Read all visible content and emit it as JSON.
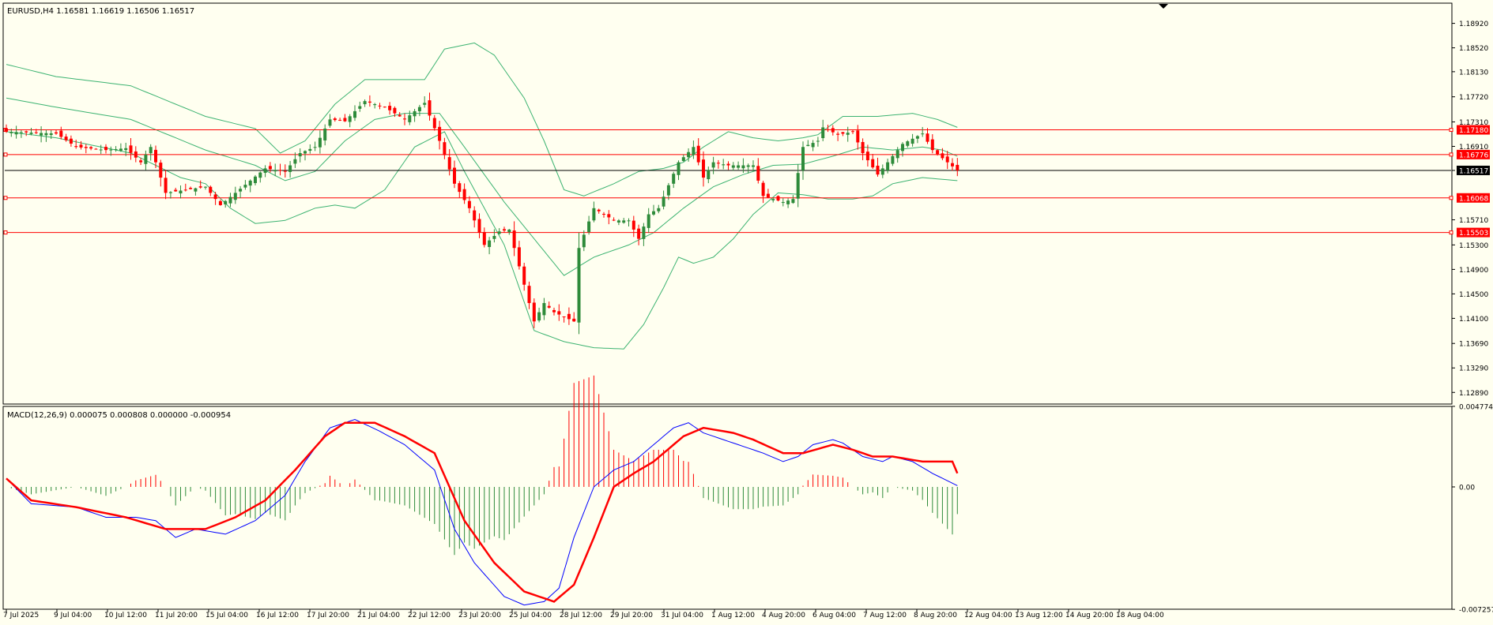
{
  "header": {
    "symbol_info": "EURUSD,H4  1.16581 1.16619 1.16506 1.16517"
  },
  "macd_header": "MACD(12,26,9) 0.000075 0.000808 0.000000 -0.000954",
  "colors": {
    "background": "#fffff0",
    "bull": "#2e8b3a",
    "bear": "#ff0000",
    "bollinger": "#3cb371",
    "hline": "#ff0000",
    "price_line": "#000000",
    "macd_line": "#0000ff",
    "signal_line": "#ff0000"
  },
  "chart_data": [
    {
      "type": "candlestick",
      "title": "EURUSD,H4  1.16581 1.16619 1.16506 1.16517",
      "ylim": [
        1.127,
        1.1925
      ],
      "y_ticks": [
        "1.18920",
        "1.18520",
        "1.18130",
        "1.17720",
        "1.17310",
        "1.16910",
        "1.16517",
        "1.15710",
        "1.15300",
        "1.14900",
        "1.14500",
        "1.14100",
        "1.13690",
        "1.13290",
        "1.12890"
      ],
      "x_ticks": [
        "7 Jul 2025",
        "9 Jul 04:00",
        "10 Jul 12:00",
        "11 Jul 20:00",
        "15 Jul 04:00",
        "16 Jul 12:00",
        "17 Jul 20:00",
        "21 Jul 04:00",
        "22 Jul 12:00",
        "23 Jul 20:00",
        "25 Jul 04:00",
        "28 Jul 12:00",
        "29 Jul 20:00",
        "31 Jul 04:00",
        "1 Aug 12:00",
        "4 Aug 20:00",
        "6 Aug 04:00",
        "7 Aug 12:00",
        "8 Aug 20:00",
        "12 Aug 04:00",
        "13 Aug 12:00",
        "14 Aug 20:00",
        "18 Aug 04:00"
      ],
      "indicators": [
        "Bollinger Bands"
      ],
      "horizontal_levels": [
        "1.17180",
        "1.16776",
        "1.16068",
        "1.15503"
      ],
      "current_price": "1.16517",
      "close_anchors": [
        [
          0,
          1.1715
        ],
        [
          10,
          1.1712
        ],
        [
          14,
          1.169
        ],
        [
          20,
          1.1685
        ],
        [
          24,
          1.1688
        ],
        [
          27,
          1.1665
        ],
        [
          29,
          1.169
        ],
        [
          32,
          1.1615
        ],
        [
          40,
          1.1625
        ],
        [
          43,
          1.1595
        ],
        [
          46,
          1.1615
        ],
        [
          52,
          1.1655
        ],
        [
          56,
          1.165
        ],
        [
          59,
          1.168
        ],
        [
          62,
          1.169
        ],
        [
          65,
          1.1735
        ],
        [
          68,
          1.1732
        ],
        [
          72,
          1.1765
        ],
        [
          76,
          1.1755
        ],
        [
          80,
          1.1735
        ],
        [
          84,
          1.1762
        ],
        [
          87,
          1.17
        ],
        [
          90,
          1.163
        ],
        [
          93,
          1.159
        ],
        [
          96,
          1.153
        ],
        [
          99,
          1.1552
        ],
        [
          101,
          1.1555
        ],
        [
          104,
          1.1465
        ],
        [
          106,
          1.1405
        ],
        [
          108,
          1.1435
        ],
        [
          110,
          1.142
        ],
        [
          114,
          1.1405
        ],
        [
          115,
          1.1525
        ],
        [
          118,
          1.159
        ],
        [
          122,
          1.157
        ],
        [
          125,
          1.157
        ],
        [
          127,
          1.154
        ],
        [
          129,
          1.158
        ],
        [
          131,
          1.159
        ],
        [
          135,
          1.1665
        ],
        [
          138,
          1.169
        ],
        [
          140,
          1.164
        ],
        [
          142,
          1.1665
        ],
        [
          145,
          1.166
        ],
        [
          150,
          1.166
        ],
        [
          152,
          1.161
        ],
        [
          156,
          1.16
        ],
        [
          158,
          1.1605
        ],
        [
          160,
          1.169
        ],
        [
          163,
          1.17
        ],
        [
          164,
          1.1722
        ],
        [
          167,
          1.171
        ],
        [
          170,
          1.1715
        ],
        [
          172,
          1.168
        ],
        [
          175,
          1.1645
        ],
        [
          178,
          1.1675
        ],
        [
          180,
          1.1695
        ],
        [
          184,
          1.1712
        ],
        [
          186,
          1.1685
        ],
        [
          189,
          1.1665
        ],
        [
          191,
          1.16517
        ]
      ],
      "bollinger_upper_anchors": [
        [
          0,
          1.1825
        ],
        [
          10,
          1.1805
        ],
        [
          25,
          1.179
        ],
        [
          40,
          1.174
        ],
        [
          50,
          1.172
        ],
        [
          55,
          1.168
        ],
        [
          60,
          1.17
        ],
        [
          66,
          1.176
        ],
        [
          72,
          1.18
        ],
        [
          78,
          1.18
        ],
        [
          84,
          1.18
        ],
        [
          88,
          1.185
        ],
        [
          94,
          1.186
        ],
        [
          98,
          1.184
        ],
        [
          104,
          1.177
        ],
        [
          108,
          1.17
        ],
        [
          112,
          1.162
        ],
        [
          116,
          1.161
        ],
        [
          122,
          1.163
        ],
        [
          127,
          1.165
        ],
        [
          132,
          1.1655
        ],
        [
          136,
          1.1665
        ],
        [
          140,
          1.169
        ],
        [
          145,
          1.1715
        ],
        [
          150,
          1.1705
        ],
        [
          155,
          1.17
        ],
        [
          160,
          1.1705
        ],
        [
          163,
          1.171
        ],
        [
          168,
          1.174
        ],
        [
          175,
          1.174
        ],
        [
          182,
          1.1745
        ],
        [
          187,
          1.1735
        ],
        [
          191,
          1.1722
        ]
      ],
      "bollinger_middle_anchors": [
        [
          0,
          1.177
        ],
        [
          10,
          1.1755
        ],
        [
          25,
          1.1735
        ],
        [
          40,
          1.1685
        ],
        [
          50,
          1.166
        ],
        [
          56,
          1.1635
        ],
        [
          62,
          1.165
        ],
        [
          68,
          1.17
        ],
        [
          74,
          1.1735
        ],
        [
          80,
          1.1745
        ],
        [
          87,
          1.1745
        ],
        [
          92,
          1.169
        ],
        [
          100,
          1.16
        ],
        [
          106,
          1.154
        ],
        [
          112,
          1.148
        ],
        [
          118,
          1.151
        ],
        [
          125,
          1.153
        ],
        [
          130,
          1.155
        ],
        [
          136,
          1.159
        ],
        [
          142,
          1.1625
        ],
        [
          148,
          1.1645
        ],
        [
          154,
          1.166
        ],
        [
          160,
          1.1662
        ],
        [
          166,
          1.1675
        ],
        [
          172,
          1.169
        ],
        [
          178,
          1.1685
        ],
        [
          184,
          1.169
        ],
        [
          188,
          1.1685
        ],
        [
          191,
          1.1675
        ]
      ],
      "bollinger_lower_anchors": [
        [
          0,
          1.1715
        ],
        [
          10,
          1.1705
        ],
        [
          25,
          1.168
        ],
        [
          35,
          1.164
        ],
        [
          40,
          1.163
        ],
        [
          45,
          1.159
        ],
        [
          50,
          1.1565
        ],
        [
          56,
          1.157
        ],
        [
          62,
          1.159
        ],
        [
          66,
          1.1595
        ],
        [
          70,
          1.159
        ],
        [
          76,
          1.162
        ],
        [
          82,
          1.169
        ],
        [
          88,
          1.1715
        ],
        [
          92,
          1.165
        ],
        [
          100,
          1.153
        ],
        [
          106,
          1.139
        ],
        [
          112,
          1.1372
        ],
        [
          118,
          1.1362
        ],
        [
          124,
          1.136
        ],
        [
          128,
          1.14
        ],
        [
          132,
          1.146
        ],
        [
          135,
          1.151
        ],
        [
          138,
          1.15
        ],
        [
          142,
          1.151
        ],
        [
          146,
          1.154
        ],
        [
          150,
          1.158
        ],
        [
          155,
          1.1615
        ],
        [
          160,
          1.1612
        ],
        [
          165,
          1.1605
        ],
        [
          170,
          1.1605
        ],
        [
          174,
          1.161
        ],
        [
          178,
          1.163
        ],
        [
          184,
          1.164
        ],
        [
          191,
          1.1635
        ]
      ]
    },
    {
      "type": "line",
      "title": "MACD(12,26,9) 0.000075 0.000808 0.000000 -0.000954",
      "ylim": [
        -0.00725,
        0.00477
      ],
      "y_ticks": [
        "0.004774",
        "0.00",
        "-0.007257"
      ],
      "macd_anchors": [
        [
          0,
          0.0005
        ],
        [
          5,
          -0.001
        ],
        [
          14,
          -0.0012
        ],
        [
          20,
          -0.0018
        ],
        [
          26,
          -0.0018
        ],
        [
          30,
          -0.002
        ],
        [
          34,
          -0.003
        ],
        [
          38,
          -0.0025
        ],
        [
          44,
          -0.0028
        ],
        [
          50,
          -0.002
        ],
        [
          56,
          -0.0005
        ],
        [
          60,
          0.0015
        ],
        [
          65,
          0.0035
        ],
        [
          70,
          0.004
        ],
        [
          75,
          0.0033
        ],
        [
          80,
          0.0025
        ],
        [
          86,
          0.001
        ],
        [
          90,
          -0.0025
        ],
        [
          94,
          -0.0045
        ],
        [
          100,
          -0.0065
        ],
        [
          104,
          -0.007
        ],
        [
          108,
          -0.0068
        ],
        [
          111,
          -0.006
        ],
        [
          114,
          -0.003
        ],
        [
          118,
          0.0
        ],
        [
          122,
          0.001
        ],
        [
          126,
          0.0015
        ],
        [
          130,
          0.0025
        ],
        [
          134,
          0.0035
        ],
        [
          137,
          0.0038
        ],
        [
          140,
          0.0032
        ],
        [
          144,
          0.0028
        ],
        [
          148,
          0.0024
        ],
        [
          152,
          0.002
        ],
        [
          156,
          0.0015
        ],
        [
          159,
          0.0018
        ],
        [
          162,
          0.0025
        ],
        [
          166,
          0.0028
        ],
        [
          168,
          0.0026
        ],
        [
          172,
          0.0018
        ],
        [
          176,
          0.0015
        ],
        [
          178,
          0.0018
        ],
        [
          182,
          0.0015
        ],
        [
          186,
          0.0008
        ],
        [
          191,
          7.5e-05
        ]
      ],
      "signal_anchors": [
        [
          0,
          0.0005
        ],
        [
          5,
          -0.0008
        ],
        [
          14,
          -0.0012
        ],
        [
          24,
          -0.0018
        ],
        [
          32,
          -0.0025
        ],
        [
          40,
          -0.0025
        ],
        [
          46,
          -0.0018
        ],
        [
          52,
          -0.0008
        ],
        [
          58,
          0.001
        ],
        [
          64,
          0.003
        ],
        [
          68,
          0.0038
        ],
        [
          74,
          0.0038
        ],
        [
          80,
          0.003
        ],
        [
          86,
          0.002
        ],
        [
          92,
          -0.002
        ],
        [
          98,
          -0.0045
        ],
        [
          104,
          -0.0062
        ],
        [
          110,
          -0.0068
        ],
        [
          114,
          -0.0058
        ],
        [
          118,
          -0.003
        ],
        [
          122,
          0.0
        ],
        [
          126,
          0.0008
        ],
        [
          130,
          0.0015
        ],
        [
          136,
          0.003
        ],
        [
          140,
          0.0035
        ],
        [
          146,
          0.0032
        ],
        [
          150,
          0.0028
        ],
        [
          156,
          0.002
        ],
        [
          160,
          0.002
        ],
        [
          166,
          0.0025
        ],
        [
          170,
          0.0022
        ],
        [
          174,
          0.0018
        ],
        [
          178,
          0.0018
        ],
        [
          184,
          0.0015
        ],
        [
          190,
          0.0015
        ],
        [
          191,
          0.000808
        ]
      ]
    }
  ]
}
